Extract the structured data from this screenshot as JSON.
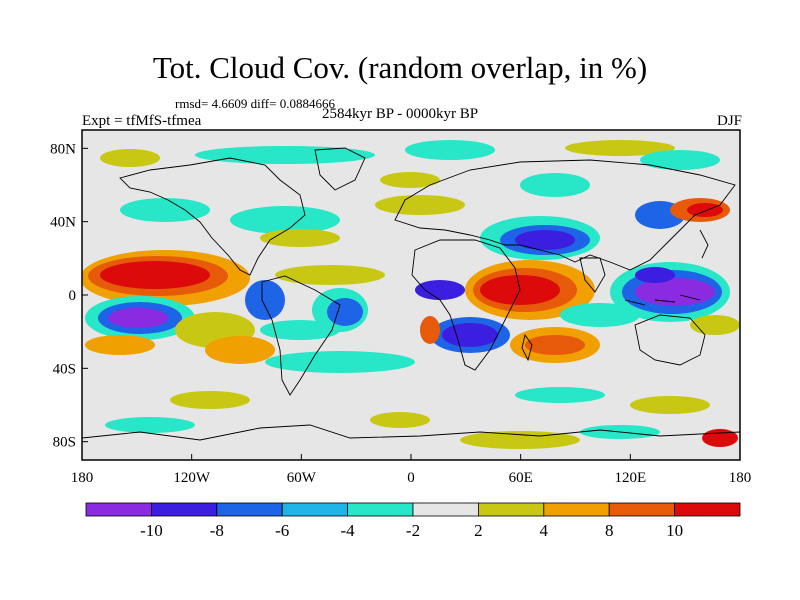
{
  "title": "Tot. Cloud Cov. (random overlap, in %)",
  "stats_line": "rmsd= 4.6609 diff= 0.0884666",
  "experiment_label": "Expt = tfMfS-tfmea",
  "period_label": "2584kyr BP - 0000kyr BP",
  "season_label": "DJF",
  "map": {
    "projection": "cylindrical equidistant",
    "lon_range": [
      -180,
      180
    ],
    "lat_range": [
      -90,
      90
    ],
    "y_tick_labels": [
      "80N",
      "40N",
      "0",
      "40S",
      "80S"
    ],
    "x_tick_labels": [
      "180",
      "120W",
      "60W",
      "0",
      "60E",
      "120E",
      "180"
    ]
  },
  "colorbar": {
    "labels": [
      "-10",
      "-8",
      "-6",
      "-4",
      "-2",
      "2",
      "4",
      "8",
      "10"
    ],
    "colors": [
      "#8a2be2",
      "#3c1ee0",
      "#1e64e6",
      "#1eb4e6",
      "#28e6c8",
      "#e6e6e6",
      "#c8c814",
      "#f0a000",
      "#e65a0a",
      "#dc0a0a"
    ]
  },
  "colors": {
    "land_outline": "#000000",
    "no_change": "#e6e6e6",
    "frame": "#000000"
  }
}
